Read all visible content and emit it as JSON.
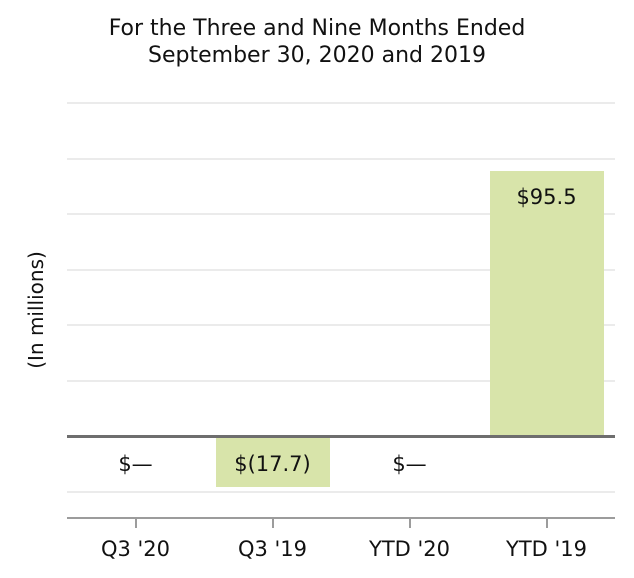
{
  "chart": {
    "title_line1": "For the Three and Nine Months Ended",
    "title_line2": "September 30, 2020 and 2019"
  },
  "chart_data": {
    "type": "bar",
    "title": "For the Three and Nine Months Ended September 30, 2020 and 2019",
    "xlabel": "",
    "ylabel": "(In millions)",
    "categories": [
      "Q3 '20",
      "Q3 '19",
      "YTD '20",
      "YTD '19"
    ],
    "values": [
      0,
      -17.7,
      0,
      95.5
    ],
    "value_labels": [
      "$—",
      "$(17.7)",
      "$—",
      "$95.5"
    ],
    "ylim": [
      -30,
      120
    ],
    "gridline_interval": 20,
    "grid": true,
    "y_tick_labels_shown": false,
    "legend_position": "none",
    "bar_color": "#d8e4aa",
    "colors": {
      "gridline": "#ebebeb",
      "zero_line": "#6e6e6e",
      "axis": "#9c9c9c",
      "text": "#111111",
      "background": "#ffffff"
    }
  }
}
